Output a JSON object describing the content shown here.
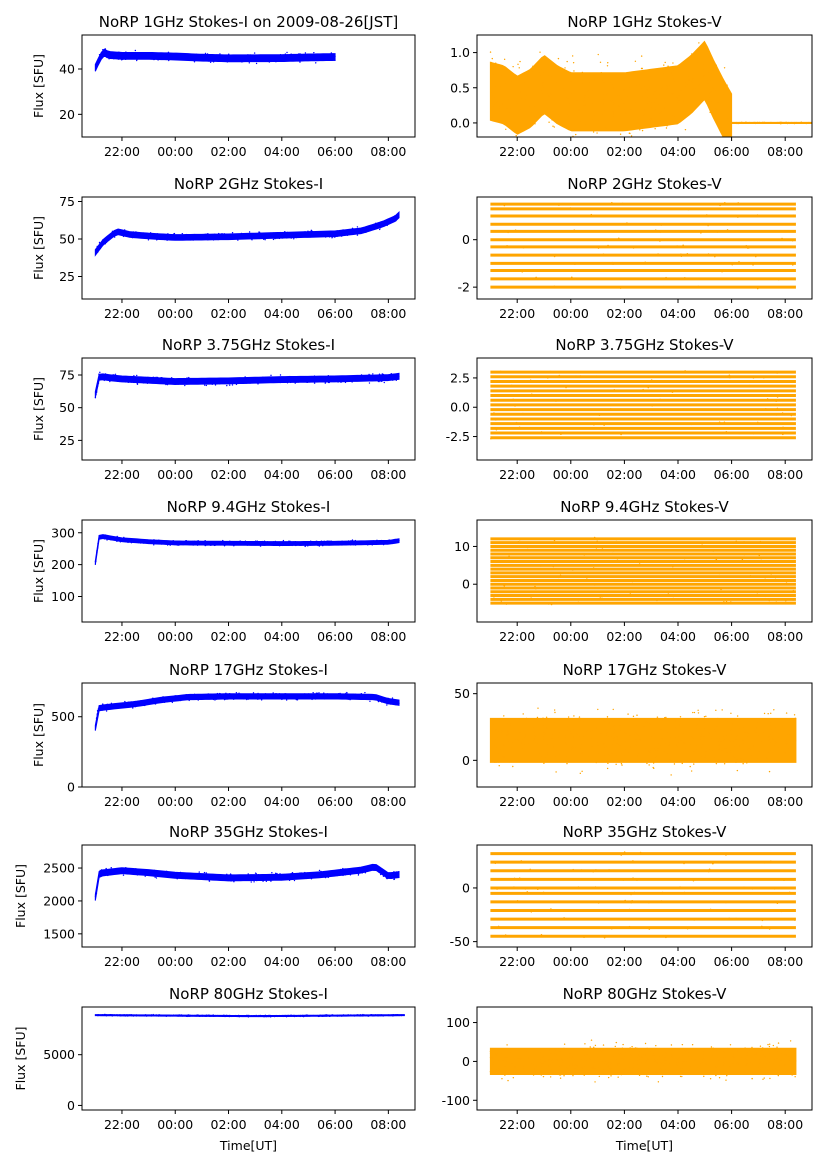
{
  "chart_data": [
    {
      "type": "scatter",
      "title": "NoRP 1GHz Stokes-I on 2009-08-26[JST]",
      "ylabel": "Flux [SFU]",
      "xlabel": "",
      "ylim": [
        10,
        55
      ],
      "yticks": [
        20,
        40
      ],
      "x_ticks": [
        "22:00",
        "00:00",
        "02:00",
        "04:00",
        "06:00",
        "08:00"
      ],
      "x_range_hours": [
        20.5,
        33.0
      ],
      "color": "#0000ff",
      "series": [
        {
          "x_range_hours": [
            21.0,
            30.0
          ],
          "profile": [
            [
              21.0,
              40.5
            ],
            [
              21.1,
              43
            ],
            [
              21.3,
              47.5
            ],
            [
              21.5,
              46.2
            ],
            [
              22.0,
              45.8
            ],
            [
              23.0,
              45.8
            ],
            [
              24.0,
              45.5
            ],
            [
              25.0,
              45.0
            ],
            [
              26.0,
              44.7
            ],
            [
              28.0,
              44.8
            ],
            [
              29.0,
              45.1
            ],
            [
              30.0,
              45.3
            ]
          ],
          "spread": 2.0
        }
      ]
    },
    {
      "type": "scatter",
      "title": "NoRP 1GHz Stokes-V",
      "ylabel": "",
      "xlabel": "",
      "ylim": [
        -0.2,
        1.25
      ],
      "yticks": [
        0.0,
        0.5,
        1.0
      ],
      "x_ticks": [
        "22:00",
        "00:00",
        "02:00",
        "04:00",
        "06:00",
        "08:00"
      ],
      "x_range_hours": [
        20.5,
        33.0
      ],
      "color": "#ffa500",
      "series": [
        {
          "x_range_hours": [
            21.0,
            30.0
          ],
          "profile": [
            [
              21.0,
              0.45
            ],
            [
              21.5,
              0.4
            ],
            [
              22.0,
              0.25
            ],
            [
              22.5,
              0.35
            ],
            [
              23.0,
              0.55
            ],
            [
              23.5,
              0.4
            ],
            [
              24.0,
              0.3
            ],
            [
              25.0,
              0.3
            ],
            [
              26.0,
              0.3
            ],
            [
              27.0,
              0.35
            ],
            [
              28.0,
              0.4
            ],
            [
              28.5,
              0.55
            ],
            [
              29.0,
              0.75
            ],
            [
              29.3,
              0.5
            ],
            [
              29.7,
              0.2
            ],
            [
              30.0,
              0.0
            ]
          ],
          "spread": 0.55
        },
        {
          "x_range_hours": [
            30.0,
            33.0
          ],
          "profile": [
            [
              30.0,
              0.0
            ],
            [
              33.0,
              0.0
            ]
          ],
          "spread": 0.01
        }
      ]
    },
    {
      "type": "scatter",
      "title": "NoRP 2GHz Stokes-I",
      "ylabel": "Flux [SFU]",
      "xlabel": "",
      "ylim": [
        10,
        78
      ],
      "yticks": [
        25,
        50,
        75
      ],
      "x_ticks": [
        "22:00",
        "00:00",
        "02:00",
        "04:00",
        "06:00",
        "08:00"
      ],
      "x_range_hours": [
        20.5,
        33.0
      ],
      "color": "#0000ff",
      "series": [
        {
          "x_range_hours": [
            21.0,
            32.4
          ],
          "profile": [
            [
              21.0,
              41
            ],
            [
              21.3,
              48
            ],
            [
              21.8,
              55
            ],
            [
              22.3,
              53
            ],
            [
              23.0,
              52
            ],
            [
              24.0,
              51
            ],
            [
              26.0,
              51.5
            ],
            [
              28.0,
              52.5
            ],
            [
              30.0,
              53.5
            ],
            [
              31.0,
              55.5
            ],
            [
              31.8,
              60
            ],
            [
              32.3,
              64
            ],
            [
              32.4,
              66
            ]
          ],
          "spread": 2.5
        }
      ]
    },
    {
      "type": "scatter",
      "title": "NoRP 2GHz Stokes-V",
      "ylabel": "",
      "xlabel": "",
      "ylim": [
        -2.5,
        1.8
      ],
      "yticks": [
        -2,
        0
      ],
      "x_ticks": [
        "22:00",
        "00:00",
        "02:00",
        "04:00",
        "06:00",
        "08:00"
      ],
      "x_range_hours": [
        20.5,
        33.0
      ],
      "color": "#ffa500",
      "series": [
        {
          "levels": [
            -2.0,
            -1.65,
            -1.3,
            -1.0,
            -0.65,
            -0.3,
            0.0,
            0.35,
            0.65,
            1.0,
            1.3,
            1.5
          ],
          "x_range_hours": [
            21.0,
            32.4
          ]
        }
      ]
    },
    {
      "type": "scatter",
      "title": "NoRP 3.75GHz Stokes-I",
      "ylabel": "Flux [SFU]",
      "xlabel": "",
      "ylim": [
        10,
        88
      ],
      "yticks": [
        25,
        50,
        75
      ],
      "x_ticks": [
        "22:00",
        "00:00",
        "02:00",
        "04:00",
        "06:00",
        "08:00"
      ],
      "x_range_hours": [
        20.5,
        33.0
      ],
      "color": "#0000ff",
      "series": [
        {
          "x_range_hours": [
            21.0,
            32.4
          ],
          "profile": [
            [
              21.0,
              60
            ],
            [
              21.15,
              74
            ],
            [
              21.5,
              73
            ],
            [
              22.0,
              72
            ],
            [
              24.0,
              70
            ],
            [
              26.0,
              70.5
            ],
            [
              28.0,
              71.5
            ],
            [
              30.0,
              72
            ],
            [
              32.0,
              73
            ],
            [
              32.4,
              74
            ]
          ],
          "spread": 3.0
        }
      ]
    },
    {
      "type": "scatter",
      "title": "NoRP 3.75GHz Stokes-V",
      "ylabel": "",
      "xlabel": "",
      "ylim": [
        -4.5,
        4.2
      ],
      "yticks": [
        -2.5,
        0.0,
        2.5
      ],
      "x_ticks": [
        "22:00",
        "00:00",
        "02:00",
        "04:00",
        "06:00",
        "08:00"
      ],
      "x_range_hours": [
        20.5,
        33.0
      ],
      "color": "#ffa500",
      "series": [
        {
          "levels": [
            -2.6,
            -2.2,
            -1.8,
            -1.4,
            -1.0,
            -0.6,
            -0.2,
            0.2,
            0.6,
            1.0,
            1.4,
            1.8,
            2.2,
            2.6,
            3.0
          ],
          "x_range_hours": [
            21.0,
            32.4
          ]
        }
      ]
    },
    {
      "type": "scatter",
      "title": "NoRP 9.4GHz Stokes-I",
      "ylabel": "Flux [SFU]",
      "xlabel": "",
      "ylim": [
        20,
        340
      ],
      "yticks": [
        100,
        200,
        300
      ],
      "x_ticks": [
        "22:00",
        "00:00",
        "02:00",
        "04:00",
        "06:00",
        "08:00"
      ],
      "x_range_hours": [
        20.5,
        33.0
      ],
      "color": "#0000ff",
      "series": [
        {
          "x_range_hours": [
            21.0,
            32.4
          ],
          "profile": [
            [
              21.0,
              205
            ],
            [
              21.15,
              290
            ],
            [
              21.5,
              285
            ],
            [
              22.0,
              278
            ],
            [
              23.0,
              272
            ],
            [
              24.0,
              268
            ],
            [
              26.0,
              267
            ],
            [
              28.0,
              266
            ],
            [
              30.0,
              267
            ],
            [
              32.0,
              270
            ],
            [
              32.4,
              275
            ]
          ],
          "spread": 8
        }
      ]
    },
    {
      "type": "scatter",
      "title": "NoRP 9.4GHz Stokes-V",
      "ylabel": "",
      "xlabel": "",
      "ylim": [
        -10,
        17
      ],
      "yticks": [
        0,
        10
      ],
      "x_ticks": [
        "22:00",
        "00:00",
        "02:00",
        "04:00",
        "06:00",
        "08:00"
      ],
      "x_range_hours": [
        20.5,
        33.0
      ],
      "color": "#ffa500",
      "series": [
        {
          "levels": [
            -5,
            -4,
            -3,
            -2,
            -1,
            0,
            1,
            2,
            3,
            4,
            5,
            6,
            7,
            8,
            9,
            10,
            11,
            12
          ],
          "x_range_hours": [
            21.0,
            32.4
          ]
        }
      ]
    },
    {
      "type": "scatter",
      "title": "NoRP 17GHz Stokes-I",
      "ylabel": "Flux [SFU]",
      "xlabel": "",
      "ylim": [
        0,
        740
      ],
      "yticks": [
        0,
        500
      ],
      "x_ticks": [
        "22:00",
        "00:00",
        "02:00",
        "04:00",
        "06:00",
        "08:00"
      ],
      "x_range_hours": [
        20.5,
        33.0
      ],
      "color": "#0000ff",
      "series": [
        {
          "x_range_hours": [
            21.0,
            32.4
          ],
          "profile": [
            [
              21.0,
              420
            ],
            [
              21.1,
              560
            ],
            [
              21.5,
              570
            ],
            [
              22.5,
              590
            ],
            [
              23.5,
              620
            ],
            [
              24.5,
              640
            ],
            [
              26.0,
              645
            ],
            [
              28.0,
              645
            ],
            [
              30.0,
              645
            ],
            [
              31.5,
              640
            ],
            [
              32.0,
              610
            ],
            [
              32.4,
              600
            ]
          ],
          "spread": 25
        }
      ]
    },
    {
      "type": "scatter",
      "title": "NoRP 17GHz Stokes-V",
      "ylabel": "",
      "xlabel": "",
      "ylim": [
        -20,
        58
      ],
      "yticks": [
        0,
        50
      ],
      "x_ticks": [
        "22:00",
        "00:00",
        "02:00",
        "04:00",
        "06:00",
        "08:00"
      ],
      "x_range_hours": [
        20.5,
        33.0
      ],
      "color": "#ffa500",
      "series": [
        {
          "x_range_hours": [
            21.0,
            32.4
          ],
          "profile": [
            [
              21.0,
              15
            ],
            [
              32.4,
              15
            ]
          ],
          "spread": 22
        }
      ]
    },
    {
      "type": "scatter",
      "title": "NoRP 35GHz Stokes-I",
      "ylabel": "Flux [SFU]",
      "xlabel": "",
      "ylim": [
        1300,
        2850
      ],
      "yticks": [
        1500,
        2000,
        2500
      ],
      "x_ticks": [
        "22:00",
        "00:00",
        "02:00",
        "04:00",
        "06:00",
        "08:00"
      ],
      "x_range_hours": [
        20.5,
        33.0
      ],
      "color": "#0000ff",
      "series": [
        {
          "x_range_hours": [
            21.0,
            32.4
          ],
          "profile": [
            [
              21.0,
              2050
            ],
            [
              21.15,
              2420
            ],
            [
              22.0,
              2460
            ],
            [
              23.0,
              2430
            ],
            [
              24.0,
              2390
            ],
            [
              26.0,
              2350
            ],
            [
              28.0,
              2360
            ],
            [
              29.5,
              2400
            ],
            [
              31.0,
              2470
            ],
            [
              31.5,
              2520
            ],
            [
              32.0,
              2380
            ],
            [
              32.4,
              2400
            ]
          ],
          "spread": 60
        }
      ]
    },
    {
      "type": "scatter",
      "title": "NoRP 35GHz Stokes-V",
      "ylabel": "",
      "xlabel": "",
      "ylim": [
        -55,
        40
      ],
      "yticks": [
        -50,
        0
      ],
      "x_ticks": [
        "22:00",
        "00:00",
        "02:00",
        "04:00",
        "06:00",
        "08:00"
      ],
      "x_range_hours": [
        20.5,
        33.0
      ],
      "color": "#ffa500",
      "series": [
        {
          "levels": [
            -45,
            -37,
            -29,
            -21,
            -13,
            -5,
            0,
            8,
            16,
            24,
            32
          ],
          "x_range_hours": [
            21.0,
            32.4
          ]
        }
      ]
    },
    {
      "type": "scatter",
      "title": "NoRP 80GHz Stokes-I",
      "ylabel": "Flux [SFU]",
      "xlabel": "Time[UT]",
      "ylim": [
        -450,
        9700
      ],
      "yticks": [
        0,
        5000
      ],
      "x_ticks": [
        "22:00",
        "00:00",
        "02:00",
        "04:00",
        "06:00",
        "08:00"
      ],
      "x_range_hours": [
        20.5,
        33.0
      ],
      "color": "#0000ff",
      "series": [
        {
          "x_range_hours": [
            21.0,
            32.6
          ],
          "profile": [
            [
              21.0,
              8900
            ],
            [
              24.0,
              8850
            ],
            [
              27.0,
              8800
            ],
            [
              30.0,
              8850
            ],
            [
              32.6,
              8900
            ]
          ],
          "spread": 70
        }
      ]
    },
    {
      "type": "scatter",
      "title": "NoRP 80GHz Stokes-V",
      "ylabel": "",
      "xlabel": "Time[UT]",
      "ylim": [
        -125,
        140
      ],
      "yticks": [
        -100,
        0,
        100
      ],
      "x_ticks": [
        "22:00",
        "00:00",
        "02:00",
        "04:00",
        "06:00",
        "08:00"
      ],
      "x_range_hours": [
        20.5,
        33.0
      ],
      "color": "#ffa500",
      "series": [
        {
          "x_range_hours": [
            21.0,
            32.4
          ],
          "profile": [
            [
              21.0,
              0
            ],
            [
              32.4,
              0
            ]
          ],
          "spread": 45
        }
      ]
    }
  ]
}
